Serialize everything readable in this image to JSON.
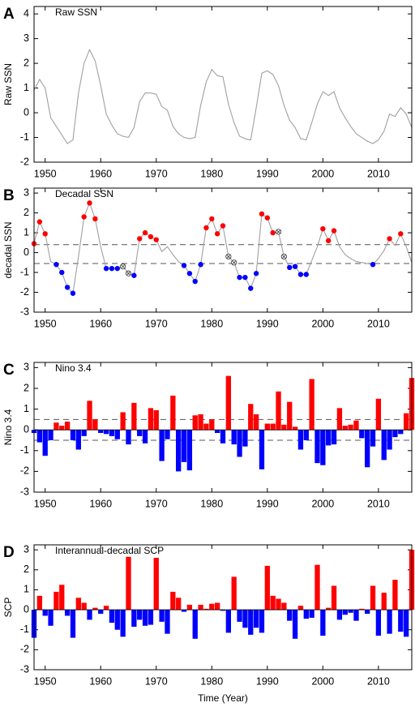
{
  "chart_data": [
    {
      "type": "line",
      "panel_label": "A",
      "title": "Raw SSN",
      "ylabel": "Raw SSN",
      "color": "#a0a0a0",
      "x": [
        1948,
        1949,
        1950,
        1951,
        1952,
        1953,
        1954,
        1955,
        1956,
        1957,
        1958,
        1959,
        1960,
        1961,
        1962,
        1963,
        1964,
        1965,
        1966,
        1967,
        1968,
        1969,
        1970,
        1971,
        1972,
        1973,
        1974,
        1975,
        1976,
        1977,
        1978,
        1979,
        1980,
        1981,
        1982,
        1983,
        1984,
        1985,
        1986,
        1987,
        1988,
        1989,
        1990,
        1991,
        1992,
        1993,
        1994,
        1995,
        1996,
        1997,
        1998,
        1999,
        2000,
        2001,
        2002,
        2003,
        2004,
        2005,
        2006,
        2007,
        2008,
        2009,
        2010,
        2011,
        2012,
        2013,
        2014,
        2015,
        2016
      ],
      "values": [
        0.9,
        1.35,
        1.0,
        -0.2,
        -0.55,
        -0.9,
        -1.25,
        -1.1,
        0.8,
        2.0,
        2.55,
        2.1,
        1.1,
        -0.05,
        -0.5,
        -0.85,
        -0.95,
        -1.0,
        -0.6,
        0.45,
        0.8,
        0.8,
        0.75,
        0.25,
        0.1,
        -0.55,
        -0.85,
        -1.0,
        -1.05,
        -1.0,
        0.3,
        1.25,
        1.75,
        1.5,
        1.45,
        0.35,
        -0.4,
        -0.95,
        -1.05,
        -1.1,
        0.2,
        1.6,
        1.7,
        1.55,
        1.1,
        0.3,
        -0.3,
        -0.6,
        -1.05,
        -1.1,
        -0.4,
        0.35,
        0.85,
        0.7,
        0.85,
        0.2,
        -0.2,
        -0.55,
        -0.85,
        -1.0,
        -1.15,
        -1.25,
        -1.1,
        -0.75,
        -0.05,
        -0.15,
        0.2,
        -0.05,
        -0.6
      ],
      "xlim": [
        1948,
        2016
      ],
      "xticks": [
        1950,
        1960,
        1970,
        1980,
        1990,
        2000,
        2010
      ],
      "ylim": [
        -2,
        4.3
      ],
      "yticks": [
        -2,
        -1,
        0,
        1,
        2,
        3,
        4
      ]
    },
    {
      "type": "line",
      "panel_label": "B",
      "title": "Decadal SSN",
      "ylabel": "decadal SSN",
      "color": "#a0a0a0",
      "x": [
        1948,
        1949,
        1950,
        1951,
        1952,
        1953,
        1954,
        1955,
        1956,
        1957,
        1958,
        1959,
        1960,
        1961,
        1962,
        1963,
        1964,
        1965,
        1966,
        1967,
        1968,
        1969,
        1970,
        1971,
        1972,
        1973,
        1974,
        1975,
        1976,
        1977,
        1978,
        1979,
        1980,
        1981,
        1982,
        1983,
        1984,
        1985,
        1986,
        1987,
        1988,
        1989,
        1990,
        1991,
        1992,
        1993,
        1994,
        1995,
        1996,
        1997,
        1998,
        1999,
        2000,
        2001,
        2002,
        2003,
        2004,
        2005,
        2006,
        2007,
        2008,
        2009,
        2010,
        2011,
        2012,
        2013,
        2014,
        2015,
        2016
      ],
      "values": [
        0.45,
        1.55,
        0.95,
        -0.45,
        -0.6,
        -1.0,
        -1.75,
        -2.05,
        -0.2,
        1.8,
        2.5,
        1.7,
        0.3,
        -0.8,
        -0.8,
        -0.8,
        -0.7,
        -1.05,
        -1.15,
        0.7,
        1.0,
        0.8,
        0.65,
        0.05,
        0.3,
        -0.1,
        -0.45,
        -0.65,
        -1.05,
        -1.45,
        -0.6,
        1.25,
        1.7,
        0.95,
        1.35,
        -0.2,
        -0.5,
        -1.25,
        -1.25,
        -1.8,
        -1.05,
        1.95,
        1.75,
        1.0,
        1.05,
        -0.2,
        -0.75,
        -0.7,
        -1.1,
        -1.1,
        -0.4,
        0.3,
        1.2,
        0.6,
        1.1,
        0.3,
        -0.1,
        -0.3,
        -0.45,
        -0.5,
        -0.55,
        -0.6,
        -0.3,
        0.1,
        0.7,
        0.35,
        0.95,
        0.3,
        -0.5
      ],
      "markers": [
        "#ff0000",
        "#ff0000",
        "#ff0000",
        null,
        "#0000ff",
        "#0000ff",
        "#0000ff",
        "#0000ff",
        null,
        "#ff0000",
        "#ff0000",
        "#ff0000",
        null,
        "#0000ff",
        "#0000ff",
        "#0000ff",
        "cross",
        "cross",
        "#0000ff",
        "#ff0000",
        "#ff0000",
        "#ff0000",
        "#ff0000",
        null,
        null,
        null,
        null,
        "#0000ff",
        "#0000ff",
        "#0000ff",
        "#0000ff",
        "#ff0000",
        "#ff0000",
        "#ff0000",
        "#ff0000",
        "cross",
        "cross",
        "#0000ff",
        "#0000ff",
        "#0000ff",
        "#0000ff",
        "#ff0000",
        "#ff0000",
        "#ff0000",
        "cross",
        "cross",
        "#0000ff",
        "#0000ff",
        "#0000ff",
        "#0000ff",
        null,
        null,
        "#ff0000",
        "#ff0000",
        "#ff0000",
        null,
        null,
        null,
        null,
        null,
        null,
        "#0000ff",
        null,
        null,
        "#ff0000",
        null,
        "#ff0000",
        null,
        null
      ],
      "hlines": [
        0.4,
        -0.55
      ],
      "xlim": [
        1948,
        2016
      ],
      "xticks": [
        1950,
        1960,
        1970,
        1980,
        1990,
        2000,
        2010
      ],
      "ylim": [
        -3,
        3.25
      ],
      "yticks": [
        -3,
        -2,
        -1,
        0,
        1,
        2,
        3
      ]
    },
    {
      "type": "bar",
      "panel_label": "C",
      "title": "Nino 3.4",
      "ylabel": "Nino 3.4",
      "positive_color": "#ff0000",
      "negative_color": "#0000ff",
      "x": [
        1948,
        1949,
        1950,
        1951,
        1952,
        1953,
        1954,
        1955,
        1956,
        1957,
        1958,
        1959,
        1960,
        1961,
        1962,
        1963,
        1964,
        1965,
        1966,
        1967,
        1968,
        1969,
        1970,
        1971,
        1972,
        1973,
        1974,
        1975,
        1976,
        1977,
        1978,
        1979,
        1980,
        1981,
        1982,
        1983,
        1984,
        1985,
        1986,
        1987,
        1988,
        1989,
        1990,
        1991,
        1992,
        1993,
        1994,
        1995,
        1996,
        1997,
        1998,
        1999,
        2000,
        2001,
        2002,
        2003,
        2004,
        2005,
        2006,
        2007,
        2008,
        2009,
        2010,
        2011,
        2012,
        2013,
        2014,
        2015,
        2016
      ],
      "values": [
        -0.15,
        -0.6,
        -1.25,
        -0.5,
        0.35,
        0.2,
        0.4,
        -0.5,
        -0.95,
        -0.3,
        1.4,
        0.5,
        -0.15,
        -0.2,
        -0.3,
        -0.45,
        0.85,
        -0.7,
        1.3,
        -0.3,
        -0.65,
        1.05,
        0.95,
        -1.5,
        -0.45,
        1.65,
        -2.0,
        -1.55,
        -1.95,
        0.7,
        0.75,
        0.3,
        0.5,
        -0.15,
        -0.65,
        2.6,
        -0.7,
        -1.3,
        -0.8,
        1.25,
        0.75,
        -1.9,
        0.3,
        0.3,
        1.85,
        0.25,
        1.35,
        0.15,
        -0.95,
        -0.5,
        2.45,
        -1.6,
        -1.7,
        -0.75,
        -0.7,
        1.05,
        0.2,
        0.25,
        0.45,
        -0.4,
        -1.8,
        -0.8,
        1.5,
        -1.45,
        -0.95,
        -0.35,
        -0.2,
        0.8,
        2.5
      ],
      "hlines": [
        0.5,
        -0.5
      ],
      "xlim": [
        1948,
        2016
      ],
      "xticks": [
        1950,
        1960,
        1970,
        1980,
        1990,
        2000,
        2010
      ],
      "ylim": [
        -3,
        3.25
      ],
      "yticks": [
        -3,
        -2,
        -1,
        0,
        1,
        2,
        3
      ]
    },
    {
      "type": "bar",
      "panel_label": "D",
      "title": "Interannual-decadal SCP",
      "ylabel": "SCP",
      "xlabel": "Time (Year)",
      "positive_color": "#ff0000",
      "negative_color": "#0000ff",
      "x": [
        1948,
        1949,
        1950,
        1951,
        1952,
        1953,
        1954,
        1955,
        1956,
        1957,
        1958,
        1959,
        1960,
        1961,
        1962,
        1963,
        1964,
        1965,
        1966,
        1967,
        1968,
        1969,
        1970,
        1971,
        1972,
        1973,
        1974,
        1975,
        1976,
        1977,
        1978,
        1979,
        1980,
        1981,
        1982,
        1983,
        1984,
        1985,
        1986,
        1987,
        1988,
        1989,
        1990,
        1991,
        1992,
        1993,
        1994,
        1995,
        1996,
        1997,
        1998,
        1999,
        2000,
        2001,
        2002,
        2003,
        2004,
        2005,
        2006,
        2007,
        2008,
        2009,
        2010,
        2011,
        2012,
        2013,
        2014,
        2015,
        2016
      ],
      "values": [
        -1.4,
        0.7,
        -0.3,
        -0.8,
        0.9,
        1.25,
        -0.3,
        -1.4,
        0.6,
        0.35,
        -0.5,
        0.1,
        -0.2,
        0.2,
        -0.65,
        -1.0,
        -1.35,
        2.65,
        -0.85,
        -0.5,
        -0.8,
        -0.75,
        2.6,
        -0.6,
        -1.2,
        0.9,
        0.6,
        -0.1,
        0.25,
        -1.45,
        0.25,
        0.05,
        0.3,
        0.35,
        -0.05,
        -1.15,
        1.65,
        -0.6,
        -0.9,
        -1.25,
        -0.9,
        -1.15,
        2.2,
        0.7,
        0.55,
        0.35,
        -0.55,
        -1.45,
        0.2,
        -0.45,
        -0.4,
        2.25,
        -1.3,
        0.1,
        1.2,
        -0.5,
        -0.25,
        -0.15,
        -0.55,
        0.05,
        -0.2,
        1.2,
        -1.3,
        0.85,
        -1.2,
        1.5,
        -1.1,
        -1.35,
        3.0
      ],
      "xlim": [
        1948,
        2016
      ],
      "xticks": [
        1950,
        1960,
        1970,
        1980,
        1990,
        2000,
        2010
      ],
      "ylim": [
        -3,
        3.25
      ],
      "yticks": [
        -3,
        -2,
        -1,
        0,
        1,
        2,
        3
      ]
    }
  ]
}
